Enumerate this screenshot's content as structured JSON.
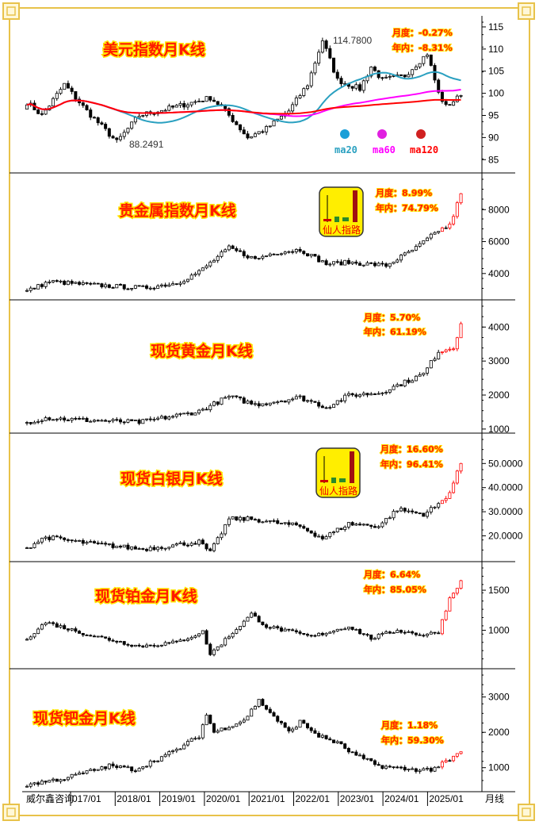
{
  "footer": {
    "brand": "威尔鑫咨询",
    "period": "月线"
  },
  "x_axis": {
    "labels": [
      "017/01",
      "2018/01",
      "2019/01",
      "2020/01",
      "2021/01",
      "2022/01",
      "2023/01",
      "2024/01",
      "2025/01"
    ]
  },
  "badge": {
    "text": "仙人指路"
  },
  "colors": {
    "title": "#ff1a00",
    "title_outline": "#ffe600",
    "ma20": "#2aa0c0",
    "ma60": "#ff00ff",
    "ma120": "#ff0000",
    "up_recent": "#ff0000",
    "candle": "#000000",
    "frame": "#e8c24a"
  },
  "chart_data": [
    {
      "type": "candlestick",
      "title": "美元指数月K线",
      "month_stat": "月度：-0.27%",
      "year_stat": "年内：-8.31%",
      "ylim": [
        82,
        117.5
      ],
      "yticks": [
        85,
        90,
        95,
        100,
        105,
        110,
        115
      ],
      "tick_decimals": 0,
      "annotations": {
        "high": "114.7800",
        "low": "88.2491"
      },
      "legend": [
        "ma20",
        "ma60",
        "ma120"
      ],
      "anchors": {
        "x": [
          "2016/02",
          "2016/06",
          "2016/12",
          "2017/06",
          "2018/02",
          "2018/08",
          "2019/06",
          "2020/03",
          "2020/06",
          "2021/01",
          "2021/06",
          "2021/12",
          "2022/05",
          "2022/09",
          "2023/01",
          "2023/07",
          "2023/10",
          "2024/01",
          "2024/07",
          "2025/01",
          "2025/04",
          "2025/06",
          "2025/10"
        ],
        "close": [
          98,
          95,
          102,
          96,
          89,
          95,
          97,
          99,
          97,
          90,
          92,
          96,
          102,
          112,
          103,
          101,
          106,
          103,
          104,
          109,
          100,
          97,
          99.5
        ]
      }
    },
    {
      "type": "candlestick",
      "title": "贵金属指数月K线",
      "month_stat": "月度：8.99%",
      "year_stat": "年内：74.79%",
      "ylim": [
        2350,
        10300
      ],
      "yticks": [
        4000,
        6000,
        8000
      ],
      "tick_decimals": 0,
      "badge": true,
      "anchors": {
        "x": [
          "2016/02",
          "2016/08",
          "2017/06",
          "2018/09",
          "2019/06",
          "2019/12",
          "2020/08",
          "2021/03",
          "2021/08",
          "2022/03",
          "2022/10",
          "2023/04",
          "2024/02",
          "2024/10",
          "2025/04",
          "2025/07",
          "2025/10"
        ],
        "close": [
          2900,
          3500,
          3300,
          3100,
          3400,
          4100,
          5600,
          4900,
          5300,
          5500,
          4600,
          4700,
          4500,
          5600,
          6700,
          7000,
          9000
        ]
      }
    },
    {
      "type": "candlestick",
      "title": "现货黄金月K线",
      "month_stat": "月度：5.70%",
      "year_stat": "年内：61.19%",
      "ylim": [
        880,
        4800
      ],
      "yticks": [
        1000,
        2000,
        3000,
        4000
      ],
      "tick_decimals": 0,
      "anchors": {
        "x": [
          "2016/02",
          "2016/07",
          "2017/06",
          "2018/08",
          "2019/06",
          "2019/12",
          "2020/08",
          "2021/03",
          "2022/03",
          "2022/10",
          "2023/04",
          "2023/12",
          "2024/06",
          "2024/12",
          "2025/04",
          "2025/08",
          "2025/10"
        ],
        "close": [
          1200,
          1330,
          1260,
          1200,
          1400,
          1520,
          1960,
          1720,
          1930,
          1640,
          1990,
          2060,
          2330,
          2620,
          3290,
          3400,
          4100
        ]
      }
    },
    {
      "type": "candlestick",
      "title": "现货白银月K线",
      "month_stat": "月度：16.60%",
      "year_stat": "年内：96.41%",
      "badge": true,
      "ylim": [
        9.3,
        62.6
      ],
      "yticks": [
        20,
        30,
        40,
        50
      ],
      "tick_decimals": 4,
      "anchors": {
        "x": [
          "2016/02",
          "2016/07",
          "2017/06",
          "2018/09",
          "2019/12",
          "2020/03",
          "2020/08",
          "2021/02",
          "2022/03",
          "2022/09",
          "2023/04",
          "2023/12",
          "2024/05",
          "2024/12",
          "2025/04",
          "2025/07",
          "2025/10"
        ],
        "close": [
          15,
          19.5,
          17,
          14.5,
          17.5,
          13,
          27,
          27,
          24,
          19,
          25,
          24,
          31,
          29,
          33,
          38,
          50
        ]
      }
    },
    {
      "type": "candlestick",
      "title": "现货铂金月K线",
      "month_stat": "月度：6.64%",
      "year_stat": "年内：85.05%",
      "ylim": [
        520,
        1857
      ],
      "yticks": [
        1000,
        1500
      ],
      "tick_decimals": 0,
      "anchors": {
        "x": [
          "2016/02",
          "2016/07",
          "2017/06",
          "2018/08",
          "2019/06",
          "2020/01",
          "2020/03",
          "2021/02",
          "2021/06",
          "2022/06",
          "2023/04",
          "2023/10",
          "2024/05",
          "2024/12",
          "2025/04",
          "2025/07",
          "2025/10"
        ],
        "close": [
          900,
          1100,
          950,
          800,
          850,
          980,
          700,
          1200,
          1050,
          920,
          1050,
          900,
          1000,
          940,
          980,
          1400,
          1620
        ]
      }
    },
    {
      "type": "candlestick",
      "title": "现货钯金月K线",
      "month_stat": "月度：1.18%",
      "year_stat": "年内：59.30%",
      "ylim": [
        320,
        3800
      ],
      "yticks": [
        1000,
        2000,
        3000
      ],
      "tick_decimals": 0,
      "anchors": {
        "x": [
          "2016/02",
          "2016/12",
          "2017/12",
          "2018/07",
          "2019/06",
          "2019/12",
          "2020/02",
          "2020/04",
          "2020/12",
          "2021/04",
          "2021/12",
          "2022/03",
          "2022/08",
          "2023/01",
          "2023/05",
          "2023/12",
          "2024/08",
          "2025/02",
          "2025/07",
          "2025/10"
        ],
        "close": [
          520,
          700,
          1050,
          950,
          1500,
          1900,
          2500,
          2000,
          2350,
          2900,
          2000,
          2300,
          1900,
          1700,
          1400,
          1050,
          950,
          950,
          1200,
          1450
        ]
      }
    }
  ]
}
